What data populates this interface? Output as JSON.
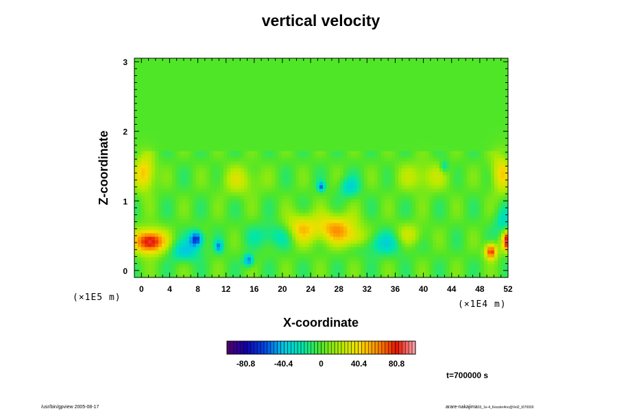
{
  "chart_data": {
    "type": "heatmap",
    "title": "vertical velocity",
    "xlabel": "X-coordinate",
    "ylabel": "Z-coordinate",
    "x_scale_label": "(×1E4 m)",
    "y_scale_label": "(×1E5 m)",
    "xlim": [
      -1,
      52
    ],
    "ylim": [
      -0.1,
      3.05
    ],
    "x_ticks": [
      0,
      4,
      8,
      12,
      16,
      20,
      24,
      28,
      32,
      36,
      40,
      44,
      48,
      52
    ],
    "y_ticks": [
      0,
      1,
      2,
      3
    ],
    "value_range": [
      -101,
      101
    ],
    "colorbar_ticks": [
      {
        "value": -80.8,
        "label": "-80.8"
      },
      {
        "value": -40.4,
        "label": "-40.4"
      },
      {
        "value": 0,
        "label": "0"
      },
      {
        "value": 40.4,
        "label": "40.4"
      },
      {
        "value": 80.8,
        "label": "80.8"
      }
    ],
    "features": [
      {
        "x": 1.2,
        "z": 0.42,
        "value": 95,
        "sx": 1.5,
        "sz": 0.12
      },
      {
        "x": 0.5,
        "z": 1.4,
        "value": 50,
        "sx": 1.0,
        "sz": 0.18
      },
      {
        "x": 7.8,
        "z": 0.46,
        "value": -70,
        "sx": 0.7,
        "sz": 0.08
      },
      {
        "x": 6.2,
        "z": 0.28,
        "value": -35,
        "sx": 1.5,
        "sz": 0.1
      },
      {
        "x": 11.0,
        "z": 0.35,
        "value": -45,
        "sx": 0.4,
        "sz": 0.06
      },
      {
        "x": 15.2,
        "z": 0.15,
        "value": -55,
        "sx": 0.5,
        "sz": 0.06
      },
      {
        "x": 22.5,
        "z": 0.6,
        "value": 45,
        "sx": 1.5,
        "sz": 0.15
      },
      {
        "x": 27.5,
        "z": 0.6,
        "value": 55,
        "sx": 2.2,
        "sz": 0.15
      },
      {
        "x": 30.5,
        "z": 0.45,
        "value": 35,
        "sx": 1.3,
        "sz": 0.1
      },
      {
        "x": 25.5,
        "z": 1.21,
        "value": -50,
        "sx": 0.35,
        "sz": 0.05
      },
      {
        "x": 34.0,
        "z": 0.4,
        "value": -30,
        "sx": 3.0,
        "sz": 0.12
      },
      {
        "x": 19.0,
        "z": 0.5,
        "value": -25,
        "sx": 2.5,
        "sz": 0.12
      },
      {
        "x": 29.5,
        "z": 1.2,
        "value": -30,
        "sx": 1.0,
        "sz": 0.1
      },
      {
        "x": 43.0,
        "z": 1.5,
        "value": -30,
        "sx": 0.4,
        "sz": 0.06
      },
      {
        "x": 49.6,
        "z": 0.28,
        "value": 80,
        "sx": 0.6,
        "sz": 0.08
      },
      {
        "x": 52.0,
        "z": 0.43,
        "value": 90,
        "sx": 0.6,
        "sz": 0.1
      },
      {
        "x": 51.0,
        "z": 1.4,
        "value": 40,
        "sx": 1.0,
        "sz": 0.2
      },
      {
        "x": 51.5,
        "z": 0.7,
        "value": -25,
        "sx": 1.0,
        "sz": 0.15
      },
      {
        "x": 14.0,
        "z": 1.3,
        "value": 25,
        "sx": 2.0,
        "sz": 0.15
      },
      {
        "x": 40.0,
        "z": 1.35,
        "value": 25,
        "sx": 2.5,
        "sz": 0.15
      },
      {
        "x": 38.0,
        "z": 0.5,
        "value": 30,
        "sx": 1.5,
        "sz": 0.12
      }
    ]
  },
  "time_label": "t=700000 s",
  "footer_left": "/usr/bin/gpview 2005-08-17",
  "footer_right_main": "arare-nakajima",
  "footer_right_small": "03_1e-4_Kessler4no@Vel2_t070000"
}
